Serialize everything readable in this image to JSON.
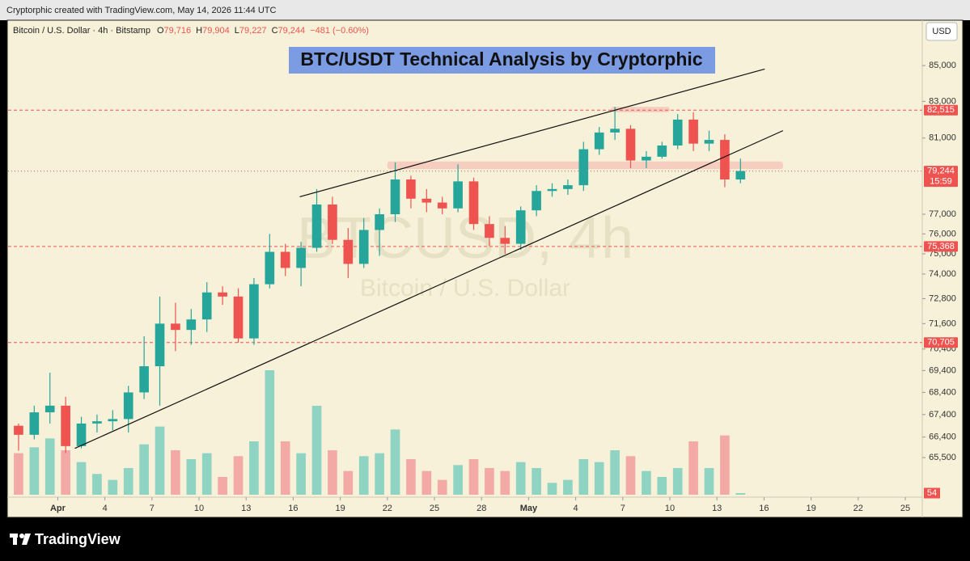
{
  "header": {
    "created_by": "Cryptorphic created with TradingView.com, May 14, 2026 11:44 UTC",
    "symbol": "Bitcoin / U.S. Dollar · 4h · Bitstamp",
    "ohlc": [
      {
        "key": "O",
        "value": "79,716"
      },
      {
        "key": "H",
        "value": "79,904"
      },
      {
        "key": "L",
        "value": "79,227"
      },
      {
        "key": "C",
        "value": "79,244"
      }
    ],
    "change": "−481 (−0.60%)",
    "currency": "USD"
  },
  "footer": {
    "logo_text": "TradingView"
  },
  "chart_data": {
    "type": "candlestick",
    "title": "BTC/USDT Technical Analysis by Cryptorphic",
    "watermark": "BTCUSD, 4h",
    "watermark_sub": "Bitcoin / U.S. Dollar",
    "log_scale": true,
    "grid": false,
    "up_color": "#26a69a",
    "down_color": "#ef5350",
    "xlim": [
      "2026-03-28T20:00",
      "2026-05-26T02:00"
    ],
    "xticks": [
      {
        "value": "2026-04-01",
        "label": "Apr"
      },
      {
        "value": "2026-04-04",
        "label": "4"
      },
      {
        "value": "2026-04-07",
        "label": "7"
      },
      {
        "value": "2026-04-10",
        "label": "10"
      },
      {
        "value": "2026-04-13",
        "label": "13"
      },
      {
        "value": "2026-04-16",
        "label": "16"
      },
      {
        "value": "2026-04-19",
        "label": "19"
      },
      {
        "value": "2026-04-22",
        "label": "22"
      },
      {
        "value": "2026-04-25",
        "label": "25"
      },
      {
        "value": "2026-04-28",
        "label": "28"
      },
      {
        "value": "2026-05-01",
        "label": "May"
      },
      {
        "value": "2026-05-04",
        "label": "4"
      },
      {
        "value": "2026-05-07",
        "label": "7"
      },
      {
        "value": "2026-05-10",
        "label": "10"
      },
      {
        "value": "2026-05-13",
        "label": "13"
      },
      {
        "value": "2026-05-16",
        "label": "16"
      },
      {
        "value": "2026-05-19",
        "label": "19"
      },
      {
        "value": "2026-05-22",
        "label": "22"
      },
      {
        "value": "2026-05-25",
        "label": "25"
      }
    ],
    "ylim": [
      63800,
      87600
    ],
    "yticks": [
      {
        "value": 85000,
        "label": "85,000"
      },
      {
        "value": 83000,
        "label": "83,000"
      },
      {
        "value": 81000,
        "label": "81,000"
      },
      {
        "value": 77000,
        "label": "77,000"
      },
      {
        "value": 76000,
        "label": "76,000"
      },
      {
        "value": 75000,
        "label": "75,000"
      },
      {
        "value": 74000,
        "label": "74,000"
      },
      {
        "value": 72800,
        "label": "72,800"
      },
      {
        "value": 71600,
        "label": "71,600"
      },
      {
        "value": 70400,
        "label": "70,400"
      },
      {
        "value": 69400,
        "label": "69,400"
      },
      {
        "value": 68400,
        "label": "68,400"
      },
      {
        "value": 67400,
        "label": "67,400"
      },
      {
        "value": 66400,
        "label": "66,400"
      },
      {
        "value": 65500,
        "label": "65,500"
      }
    ],
    "x": [
      "2026-03-29",
      "2026-03-30",
      "2026-03-31",
      "2026-04-01",
      "2026-04-02",
      "2026-04-03",
      "2026-04-04",
      "2026-04-05",
      "2026-04-06",
      "2026-04-07",
      "2026-04-08",
      "2026-04-09",
      "2026-04-10",
      "2026-04-11",
      "2026-04-12",
      "2026-04-13",
      "2026-04-14",
      "2026-04-15",
      "2026-04-16",
      "2026-04-17",
      "2026-04-18",
      "2026-04-19",
      "2026-04-20",
      "2026-04-21",
      "2026-04-22",
      "2026-04-23",
      "2026-04-24",
      "2026-04-25",
      "2026-04-26",
      "2026-04-27",
      "2026-04-28",
      "2026-04-29",
      "2026-04-30",
      "2026-05-01",
      "2026-05-02",
      "2026-05-03",
      "2026-05-04",
      "2026-05-05",
      "2026-05-06",
      "2026-05-07",
      "2026-05-08",
      "2026-05-09",
      "2026-05-10",
      "2026-05-11",
      "2026-05-12",
      "2026-05-13",
      "2026-05-14"
    ],
    "open": [
      66900,
      66500,
      67500,
      67800,
      66000,
      67000,
      67100,
      67200,
      68400,
      69600,
      71600,
      71300,
      71800,
      73100,
      72900,
      70900,
      73500,
      75100,
      74300,
      75300,
      77500,
      75700,
      74500,
      76200,
      77000,
      78800,
      77800,
      77600,
      77300,
      78700,
      76500,
      75800,
      75500,
      77200,
      78200,
      78300,
      78500,
      80400,
      81300,
      81500,
      79800,
      80000,
      80600,
      82000,
      80700,
      80900,
      78800
    ],
    "high": [
      67000,
      67800,
      69300,
      68200,
      67300,
      67400,
      67600,
      68700,
      71000,
      72900,
      72600,
      72300,
      73600,
      73400,
      73300,
      73800,
      76000,
      75500,
      75600,
      78300,
      77900,
      76300,
      76800,
      77300,
      79700,
      79000,
      78300,
      77900,
      79600,
      78900,
      76900,
      76400,
      77400,
      78500,
      78600,
      78800,
      80800,
      81600,
      82700,
      81700,
      80300,
      80800,
      82300,
      82400,
      81400,
      81200,
      79900
    ],
    "low": [
      65800,
      66300,
      67000,
      65700,
      65900,
      66600,
      66700,
      66600,
      68100,
      67800,
      70300,
      70600,
      71200,
      72500,
      70700,
      70600,
      73300,
      73900,
      73400,
      75100,
      75500,
      73800,
      74300,
      74900,
      76600,
      77300,
      77100,
      77000,
      77100,
      76200,
      75400,
      75000,
      75200,
      76900,
      77900,
      78000,
      78200,
      80100,
      80900,
      79400,
      79400,
      79900,
      80400,
      80300,
      80300,
      78400,
      78600
    ],
    "close": [
      66500,
      67500,
      67800,
      66000,
      67000,
      67100,
      67200,
      68400,
      69600,
      71600,
      71300,
      71800,
      73100,
      72900,
      70900,
      73500,
      75100,
      74300,
      75300,
      77500,
      75700,
      74500,
      76200,
      77000,
      78800,
      77800,
      77600,
      77300,
      78700,
      76500,
      75800,
      75500,
      77200,
      78200,
      78300,
      78500,
      80400,
      81300,
      81500,
      79800,
      80000,
      80600,
      82000,
      80700,
      80900,
      78800,
      79244
    ],
    "volume": [
      1400,
      1600,
      1900,
      1500,
      1100,
      700,
      500,
      900,
      1700,
      2300,
      1500,
      1200,
      1400,
      600,
      1300,
      1800,
      4200,
      1800,
      1400,
      3000,
      1500,
      800,
      1300,
      1400,
      2200,
      1200,
      800,
      500,
      1000,
      1200,
      900,
      800,
      1100,
      900,
      400,
      500,
      1200,
      1100,
      1500,
      1300,
      800,
      600,
      900,
      1800,
      900,
      2000,
      54
    ],
    "vlim": [
      0,
      6000
    ],
    "price_lines": [
      {
        "value": 82515,
        "label": "82,515"
      },
      {
        "value": 79244,
        "label": "79,244",
        "countdown": "15:59"
      },
      {
        "value": 75368,
        "label": "75,368"
      },
      {
        "value": 70705,
        "label": "70,705"
      }
    ],
    "trendlines": [
      {
        "from": "2026-04-16T10:00",
        "to": "2026-05-16T01:00",
        "from_price": 77900,
        "to_price": 84800
      },
      {
        "from": "2026-04-02T02:00",
        "to": "2026-05-17T05:00",
        "from_price": 65900,
        "to_price": 81400
      }
    ],
    "zones": [
      {
        "from": "2026-04-22T00:00",
        "to": "2026-05-17T05:00",
        "low": 79350,
        "high": 79750
      },
      {
        "from": "2026-05-06T06:00",
        "to": "2026-05-10T00:00",
        "low": 82400,
        "high": 82700
      }
    ]
  }
}
